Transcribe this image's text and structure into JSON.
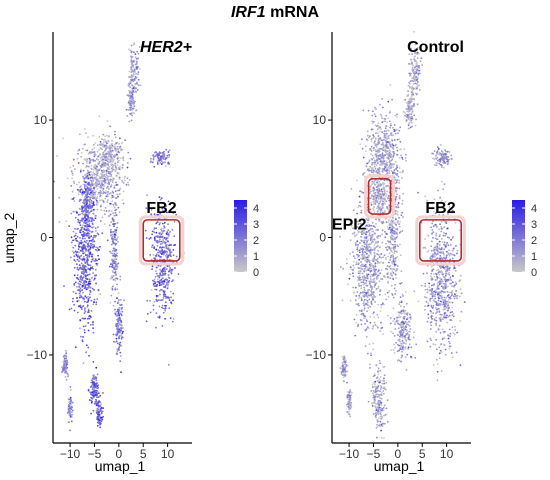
{
  "figure": {
    "title_gene": "IRF1",
    "title_rest": " mRNA"
  },
  "colors": {
    "low": "#c8c8c8",
    "high": "#2a1be6",
    "annotation_box": "#b32a2a"
  },
  "chart_data": [
    {
      "type": "scatter",
      "panel_title": "HER2+",
      "panel_title_italic": true,
      "xlabel": "umap_1",
      "ylabel": "umap_2",
      "xticks": [
        -10,
        -5,
        0,
        5,
        10
      ],
      "yticks": [
        -10,
        0,
        10
      ],
      "xlim": [
        -13.5,
        15
      ],
      "ylim": [
        -17.5,
        17.5
      ],
      "color_scale": {
        "ticks": [
          0,
          1,
          2,
          3,
          4
        ],
        "min": 0,
        "max": 4.5
      },
      "annotations": [
        {
          "label": "FB2",
          "x": [
            5,
            12.5
          ],
          "y": [
            -2,
            1.5
          ]
        }
      ],
      "clusters": [
        {
          "cx": 3.0,
          "cy": 14.0,
          "sx": 0.7,
          "sy": 1.5,
          "expr": 1.0
        },
        {
          "cx": 2.5,
          "cy": 11.5,
          "sx": 0.5,
          "sy": 1.0,
          "expr": 1.2
        },
        {
          "cx": -4.0,
          "cy": 5.0,
          "sx": 3.5,
          "sy": 2.0,
          "expr": 0.7
        },
        {
          "cx": -2.0,
          "cy": 7.0,
          "sx": 1.6,
          "sy": 1.2,
          "expr": 0.8
        },
        {
          "cx": 8.5,
          "cy": 6.8,
          "sx": 1.3,
          "sy": 0.45,
          "expr": 1.8
        },
        {
          "cx": 9.0,
          "cy": -2.0,
          "sx": 1.7,
          "sy": 3.2,
          "expr": 2.4
        },
        {
          "cx": -7.0,
          "cy": -2.0,
          "sx": 1.8,
          "sy": 4.0,
          "expr": 2.6
        },
        {
          "cx": -6.5,
          "cy": 2.5,
          "sx": 1.0,
          "sy": 2.0,
          "expr": 2.2
        },
        {
          "cx": -1.0,
          "cy": -1.0,
          "sx": 0.6,
          "sy": 3.0,
          "expr": 1.6
        },
        {
          "cx": 0.0,
          "cy": -7.5,
          "sx": 0.6,
          "sy": 1.5,
          "expr": 2.2
        },
        {
          "cx": -11.0,
          "cy": -11.0,
          "sx": 0.4,
          "sy": 0.6,
          "expr": 1.5
        },
        {
          "cx": -10.0,
          "cy": -14.5,
          "sx": 0.3,
          "sy": 0.8,
          "expr": 1.5
        },
        {
          "cx": -5.0,
          "cy": -13.0,
          "sx": 0.6,
          "sy": 1.0,
          "expr": 2.6
        },
        {
          "cx": -4.0,
          "cy": -15.0,
          "sx": 0.5,
          "sy": 0.7,
          "expr": 2.6
        }
      ]
    },
    {
      "type": "scatter",
      "panel_title": "Control",
      "panel_title_italic": false,
      "xlabel": "umap_1",
      "ylabel": "",
      "xticks": [
        -10,
        -5,
        0,
        5,
        10
      ],
      "yticks": [
        -10,
        0,
        10
      ],
      "xlim": [
        -13.5,
        15
      ],
      "ylim": [
        -17.5,
        17.5
      ],
      "color_scale": {
        "ticks": [
          0,
          1,
          2,
          3,
          4
        ],
        "min": 0,
        "max": 4.5
      },
      "annotations": [
        {
          "label": "EPI2",
          "x": [
            -6,
            -1.5
          ],
          "y": [
            2,
            5
          ]
        },
        {
          "label": "FB2",
          "x": [
            4.5,
            13
          ],
          "y": [
            -2,
            1.5
          ]
        }
      ],
      "clusters": [
        {
          "cx": 3.5,
          "cy": 14.0,
          "sx": 0.7,
          "sy": 1.5,
          "expr": 0.8
        },
        {
          "cx": 2.5,
          "cy": 11.0,
          "sx": 0.6,
          "sy": 1.2,
          "expr": 0.8
        },
        {
          "cx": -3.0,
          "cy": 7.0,
          "sx": 2.5,
          "sy": 2.5,
          "expr": 0.9
        },
        {
          "cx": -4.0,
          "cy": 3.5,
          "sx": 1.2,
          "sy": 1.2,
          "expr": 0.8
        },
        {
          "cx": 9.0,
          "cy": 6.8,
          "sx": 1.2,
          "sy": 0.45,
          "expr": 1.2
        },
        {
          "cx": 9.0,
          "cy": -3.5,
          "sx": 2.2,
          "sy": 4.0,
          "expr": 1.2
        },
        {
          "cx": -6.0,
          "cy": -2.0,
          "sx": 2.2,
          "sy": 4.0,
          "expr": 1.0
        },
        {
          "cx": -1.0,
          "cy": 1.0,
          "sx": 1.0,
          "sy": 4.0,
          "expr": 0.9
        },
        {
          "cx": 1.0,
          "cy": -8.0,
          "sx": 1.2,
          "sy": 1.8,
          "expr": 1.0
        },
        {
          "cx": -11.0,
          "cy": -11.0,
          "sx": 0.4,
          "sy": 0.6,
          "expr": 0.9
        },
        {
          "cx": -10.0,
          "cy": -14.0,
          "sx": 0.3,
          "sy": 0.8,
          "expr": 0.9
        },
        {
          "cx": -4.0,
          "cy": -14.0,
          "sx": 1.0,
          "sy": 1.8,
          "expr": 0.9
        }
      ]
    }
  ]
}
